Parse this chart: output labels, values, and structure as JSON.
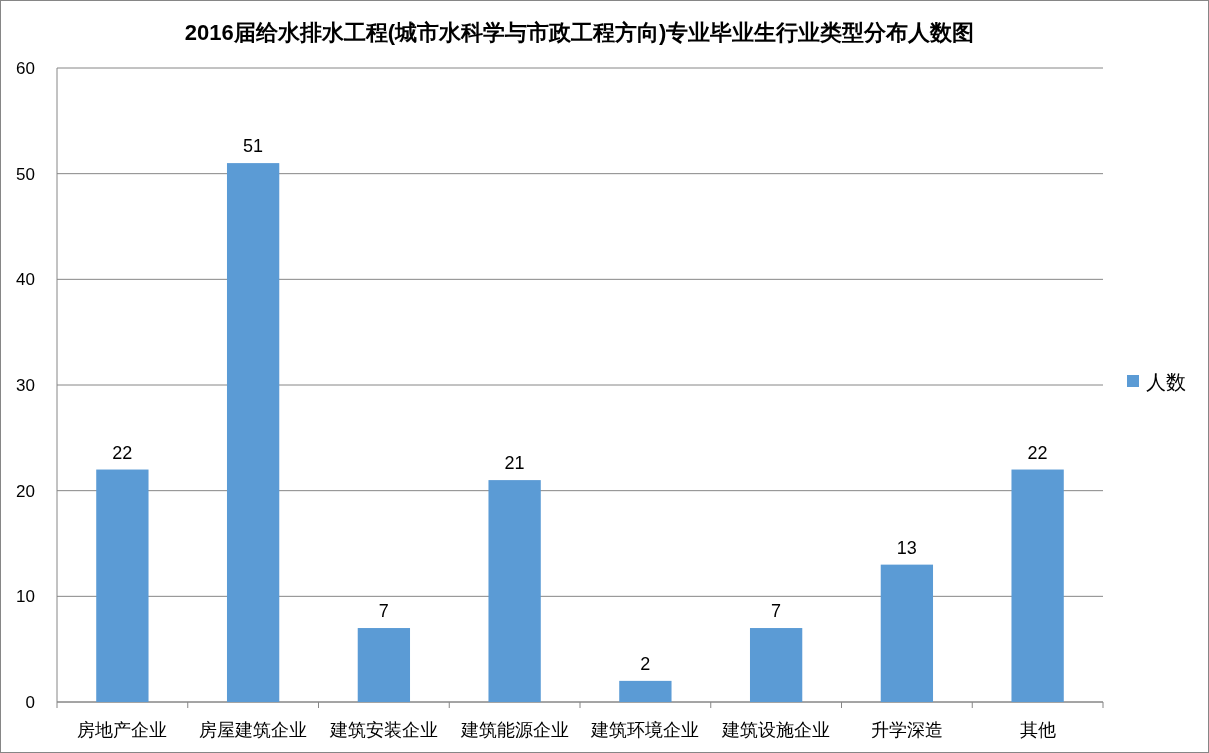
{
  "chart_data": {
    "type": "bar",
    "title": "2016届给水排水工程(城市水科学与市政工程方向)专业毕业生行业类型分布人数图",
    "categories": [
      "房地产企业",
      "房屋建筑企业",
      "建筑安装企业",
      "建筑能源企业",
      "建筑环境企业",
      "建筑设施企业",
      "升学深造",
      "其他"
    ],
    "series": [
      {
        "name": "人数",
        "color": "#5b9bd5",
        "values": [
          22,
          51,
          7,
          21,
          2,
          7,
          13,
          22
        ]
      }
    ],
    "ylim": [
      0,
      60
    ],
    "yticks": [
      0,
      10,
      20,
      30,
      40,
      50,
      60
    ],
    "grid": "y",
    "legend": "right",
    "data_labels": true
  }
}
